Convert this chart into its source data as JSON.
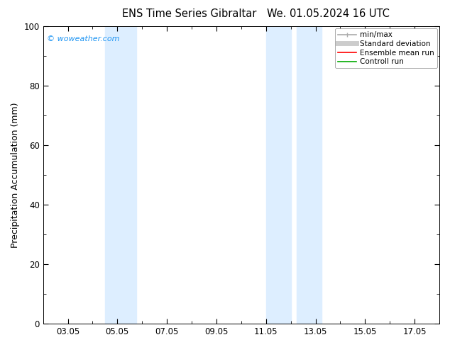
{
  "title_left": "ENS Time Series Gibraltar",
  "title_right": "We. 01.05.2024 16 UTC",
  "ylabel": "Precipitation Accumulation (mm)",
  "ylim": [
    0,
    100
  ],
  "yticks": [
    0,
    20,
    40,
    60,
    80,
    100
  ],
  "xtick_labels": [
    "03.05",
    "05.05",
    "07.05",
    "09.05",
    "11.05",
    "13.05",
    "15.05",
    "17.05"
  ],
  "xtick_positions": [
    3,
    5,
    7,
    9,
    11,
    13,
    15,
    17
  ],
  "xlim": [
    2,
    18
  ],
  "shaded_regions": [
    {
      "xmin": 4.5,
      "xmax": 5.75,
      "color": "#ddeeff"
    },
    {
      "xmin": 11.0,
      "xmax": 12.0,
      "color": "#ddeeff"
    },
    {
      "xmin": 12.25,
      "xmax": 13.25,
      "color": "#ddeeff"
    }
  ],
  "watermark": "© woweather.com",
  "watermark_color": "#2196F3",
  "legend_entries": [
    {
      "label": "min/max",
      "color": "#aaaaaa",
      "lw": 1.2
    },
    {
      "label": "Standard deviation",
      "color": "#cccccc",
      "lw": 5
    },
    {
      "label": "Ensemble mean run",
      "color": "#ff0000",
      "lw": 1.2
    },
    {
      "label": "Controll run",
      "color": "#00aa00",
      "lw": 1.2
    }
  ],
  "bg_color": "#ffffff",
  "plot_bg_color": "#ffffff",
  "title_fontsize": 10.5,
  "axis_label_fontsize": 9,
  "tick_fontsize": 8.5
}
